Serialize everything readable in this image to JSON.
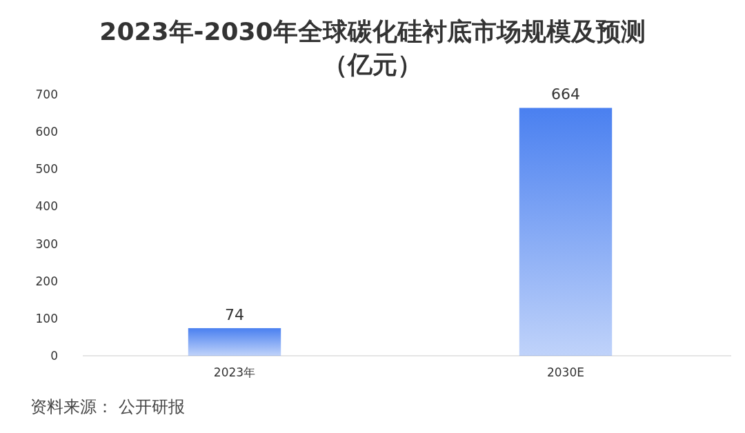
{
  "chart_data": {
    "type": "bar",
    "title": "2023年-2030年全球碳化硅衬底市场规模及预测（亿元）",
    "categories": [
      "2023年",
      "2030E"
    ],
    "values": [
      74,
      664
    ],
    "color": "#4a80f0",
    "ylim": [
      0,
      700
    ],
    "yticks": [
      0,
      100,
      200,
      300,
      400,
      500,
      600,
      700
    ],
    "data_labels": true,
    "annotations": [
      "资料来源： 公开研报"
    ]
  }
}
